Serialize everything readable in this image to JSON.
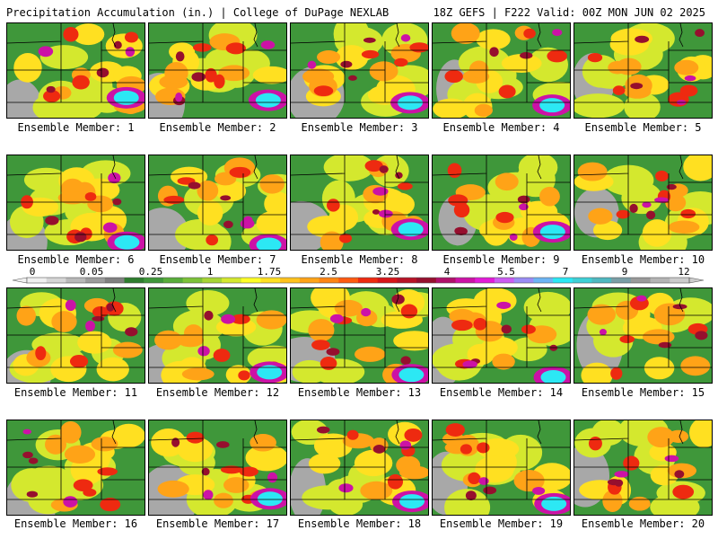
{
  "header": {
    "left": "Precipitation Accumulation (in.) | College of DuPage NEXLAB",
    "right": "18Z GEFS | F222 Valid: 00Z MON JUN 02 2025"
  },
  "members": [
    "Ensemble Member: 1",
    "Ensemble Member: 2",
    "Ensemble Member: 3",
    "Ensemble Member: 4",
    "Ensemble Member: 5",
    "Ensemble Member: 6",
    "Ensemble Member: 7",
    "Ensemble Member: 8",
    "Ensemble Member: 9",
    "Ensemble Member: 10",
    "Ensemble Member: 11",
    "Ensemble Member: 12",
    "Ensemble Member: 13",
    "Ensemble Member: 14",
    "Ensemble Member: 15",
    "Ensemble Member: 16",
    "Ensemble Member: 17",
    "Ensemble Member: 18",
    "Ensemble Member: 19",
    "Ensemble Member: 20"
  ],
  "colorbar": {
    "labels": [
      "0",
      "0.05",
      "0.25",
      "1",
      "1.75",
      "2.5",
      "3.25",
      "4",
      "5.5",
      "7",
      "9",
      "12"
    ],
    "colors": [
      "#f0f0f0",
      "#d6d6d6",
      "#b8b8b8",
      "#9c9c9c",
      "#808080",
      "#2e7d2e",
      "#3f973a",
      "#58ad3a",
      "#7cc238",
      "#a6d534",
      "#d4e82e",
      "#ffff26",
      "#ffe021",
      "#ffc21c",
      "#ffa317",
      "#ff8412",
      "#ff5a10",
      "#ee2a10",
      "#d8141a",
      "#b81226",
      "#960f2e",
      "#b0106a",
      "#cc12a6",
      "#e21bd8",
      "#cc5cf2",
      "#9a8cf5",
      "#6cb4f4",
      "#2ce8f4",
      "#3ed0d6",
      "#4fb8c0",
      "#7a9ea6",
      "#9a9a9a",
      "#b4b4b4",
      "#cccccc"
    ]
  }
}
